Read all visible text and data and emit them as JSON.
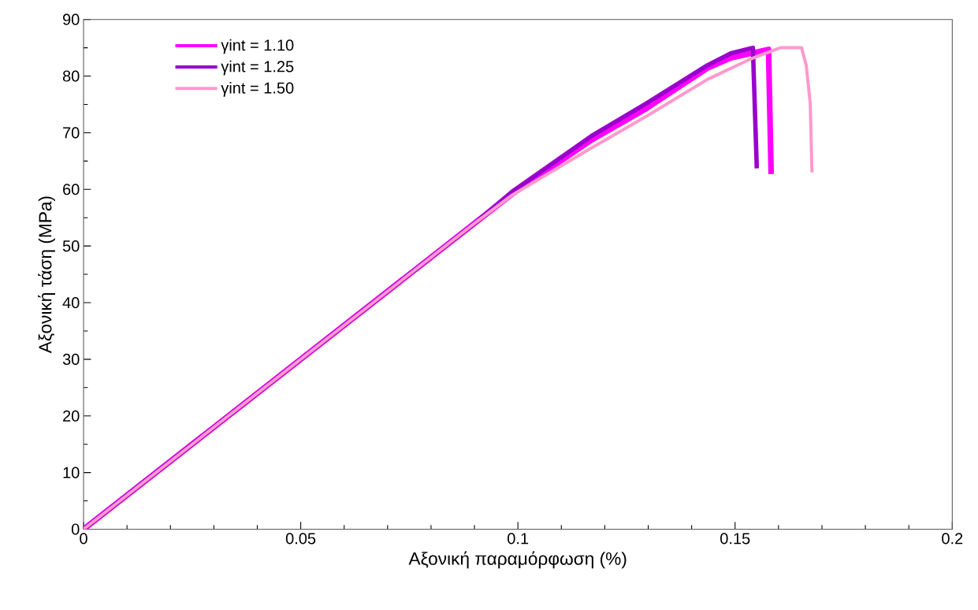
{
  "chart_data": {
    "type": "line",
    "xlabel": "Αξονική παραμόρφωση (%)",
    "ylabel": "Αξονική τάση (MPa)",
    "xlim": [
      0,
      0.2
    ],
    "ylim": [
      0,
      90
    ],
    "xticks": [
      0,
      0.05,
      0.1,
      0.15,
      0.2
    ],
    "yticks": [
      0,
      10,
      20,
      30,
      40,
      50,
      60,
      70,
      80,
      90
    ],
    "legend": "top left",
    "grid": false,
    "marker": "none",
    "line_style": "solid",
    "series": [
      {
        "name": "γint = 1.10",
        "color": "#ff00ff",
        "x": [
          0,
          0.05,
          0.09,
          0.0987,
          0.1169,
          0.1296,
          0.1436,
          0.149,
          0.1577,
          0.1583
        ],
        "values": [
          0,
          30,
          54,
          59.2,
          68.7,
          74.3,
          81.4,
          83.2,
          84.7,
          62.7
        ]
      },
      {
        "name": "γint = 1.25",
        "color": "#9900cc",
        "x": [
          0,
          0.05,
          0.09,
          0.0987,
          0.1169,
          0.1296,
          0.1436,
          0.149,
          0.1541,
          0.155
        ],
        "values": [
          0,
          30,
          54,
          59.6,
          69.4,
          75.2,
          81.9,
          84.0,
          85.0,
          63.7
        ]
      },
      {
        "name": "γint = 1.50",
        "color": "#ff99cc",
        "x": [
          0,
          0.05,
          0.09,
          0.0987,
          0.1169,
          0.1296,
          0.1436,
          0.1532,
          0.1604,
          0.1653,
          0.1664,
          0.1673,
          0.1677
        ],
        "values": [
          0,
          30,
          54,
          59.0,
          67.3,
          72.9,
          79.4,
          82.9,
          85.0,
          85.0,
          81.8,
          75.2,
          63.0
        ]
      }
    ]
  }
}
